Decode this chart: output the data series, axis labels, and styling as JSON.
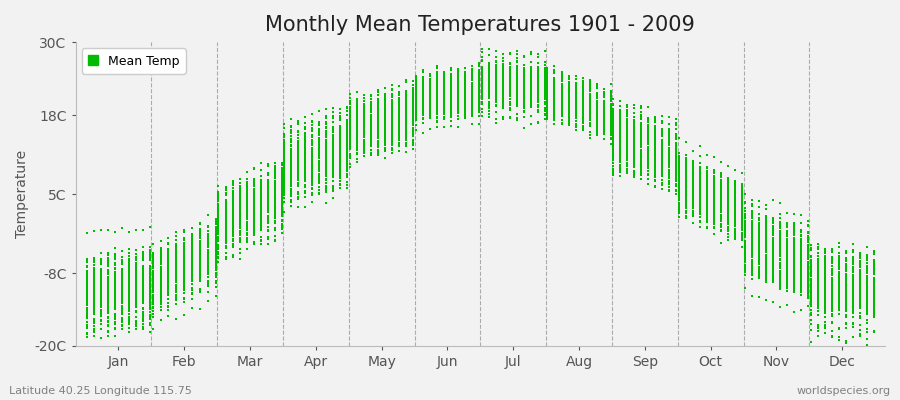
{
  "title": "Monthly Mean Temperatures 1901 - 2009",
  "ylabel": "Temperature",
  "xlabel_bottom_left": "Latitude 40.25 Longitude 115.75",
  "xlabel_bottom_right": "worldspecies.org",
  "ylim": [
    -20,
    30
  ],
  "yticks": [
    -20,
    -8,
    5,
    18,
    30
  ],
  "ytick_labels": [
    "-20C",
    "-8C",
    "5C",
    "18C",
    "30C"
  ],
  "months": [
    "Jan",
    "Feb",
    "Mar",
    "Apr",
    "May",
    "Jun",
    "Jul",
    "Aug",
    "Sep",
    "Oct",
    "Nov",
    "Dec"
  ],
  "dot_color": "#00bb00",
  "background_color": "#f2f2f2",
  "plot_bg_color": "#f2f2f2",
  "monthly_mean_temps": [
    -12.5,
    -10.0,
    0.0,
    9.5,
    15.5,
    20.5,
    23.5,
    22.0,
    14.5,
    7.0,
    -2.5,
    -10.5
  ],
  "monthly_std": [
    2.8,
    2.5,
    2.8,
    2.8,
    2.3,
    1.8,
    1.8,
    1.8,
    2.5,
    2.5,
    3.0,
    2.8
  ],
  "n_years": 109,
  "title_fontsize": 15,
  "axis_fontsize": 10,
  "tick_fontsize": 10,
  "legend_fontsize": 9,
  "marker_size": 4
}
